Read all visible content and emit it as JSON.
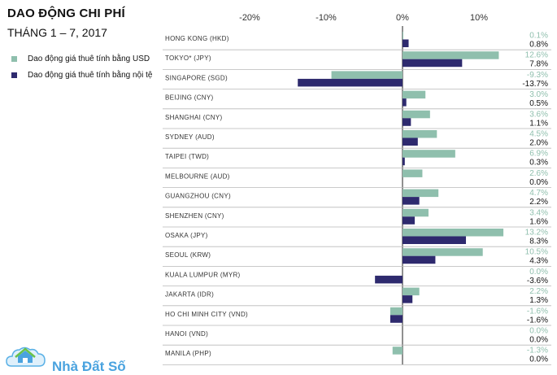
{
  "header": {
    "title": "DAO ĐỘNG CHI PHÍ",
    "subtitle": "THÁNG 1 – 7, 2017"
  },
  "colors": {
    "usd": "#8fbfad",
    "local": "#2e2a6e"
  },
  "legend": {
    "usd_label": "Dao động giá thuê tính bằng USD",
    "local_label": "Dao động giá thuê tính bằng nội tệ"
  },
  "logo": {
    "text": "Nhà Đất Số",
    "icon": "house-cloud-icon"
  },
  "chart_data": {
    "type": "bar",
    "orientation": "horizontal",
    "x_ticks": [
      "-20%",
      "-10%",
      "0%",
      "10%"
    ],
    "xlim": [
      -20,
      15
    ],
    "categories": [
      "HONG KONG (HKD)",
      "TOKYO* (JPY)",
      "SINGAPORE (SGD)",
      "BEIJING (CNY)",
      "SHANGHAI (CNY)",
      "SYDNEY (AUD)",
      "TAIPEI (TWD)",
      "MELBOURNE (AUD)",
      "GUANGZHOU (CNY)",
      "SHENZHEN (CNY)",
      "OSAKA (JPY)",
      "SEOUL (KRW)",
      "KUALA LUMPUR (MYR)",
      "JAKARTA (IDR)",
      "HO CHI MINH CITY (VND)",
      "HANOI (VND)",
      "MANILA (PHP)"
    ],
    "series": [
      {
        "key": "usd",
        "values": [
          0.1,
          12.6,
          -9.3,
          3.0,
          3.6,
          4.5,
          6.9,
          2.6,
          4.7,
          3.4,
          13.2,
          10.5,
          0.0,
          2.2,
          -1.6,
          0.0,
          -1.3
        ],
        "labels": [
          "0.1%",
          "12.6%",
          "-9.3%",
          "3.0%",
          "3.6%",
          "4.5%",
          "6.9%",
          "2.6%",
          "4.7%",
          "3.4%",
          "13.2%",
          "10.5%",
          "0.0%",
          "2.2%",
          "-1.6%",
          "0.0%",
          "-1.3%"
        ]
      },
      {
        "key": "local",
        "values": [
          0.8,
          7.8,
          -13.7,
          0.5,
          1.1,
          2.0,
          0.3,
          0.0,
          2.2,
          1.6,
          8.3,
          4.3,
          -3.6,
          1.3,
          -1.6,
          0.0,
          0.0
        ],
        "labels": [
          "0.8%",
          "7.8%",
          "-13.7%",
          "0.5%",
          "1.1%",
          "2.0%",
          "0.3%",
          "0.0%",
          "2.2%",
          "1.6%",
          "8.3%",
          "4.3%",
          "-3.6%",
          "1.3%",
          "-1.6%",
          "0.0%",
          "0.0%"
        ]
      }
    ]
  }
}
